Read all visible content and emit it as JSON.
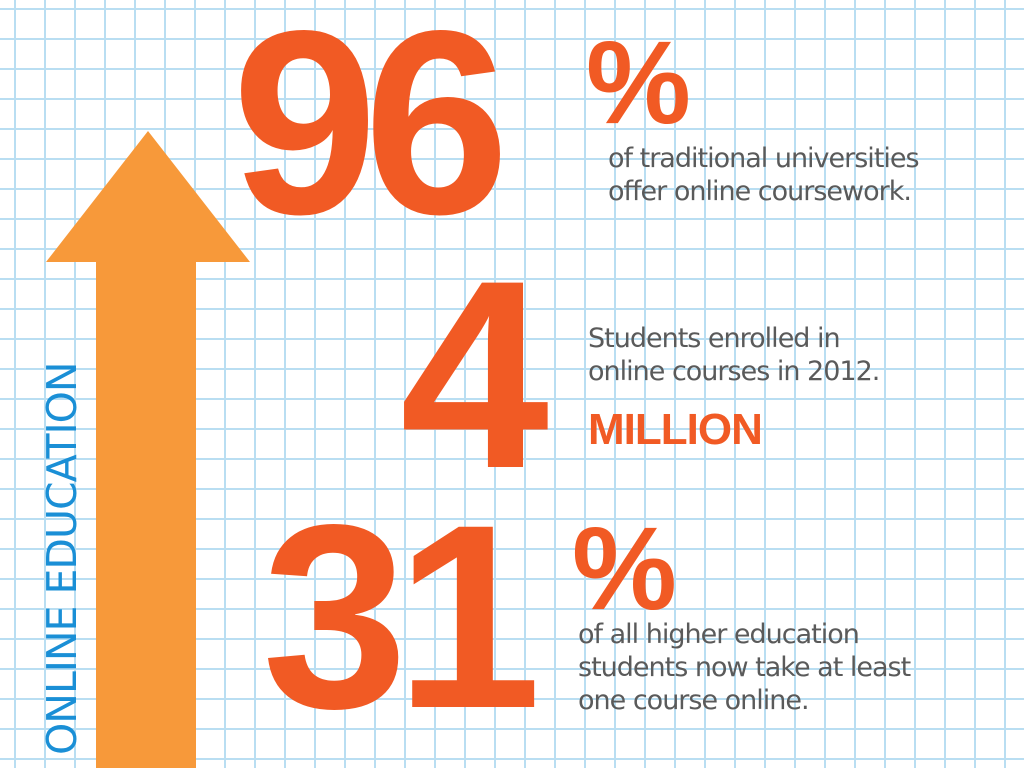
{
  "infographic": {
    "side_label": "ONLINE EDUCATION",
    "colors": {
      "accent_orange": "#f15a24",
      "arrow_orange": "#f7993a",
      "label_blue": "#1a8fd6",
      "text_gray": "#5a5a5a",
      "grid_blue": "#b9def2"
    },
    "stats": [
      {
        "number": "96",
        "unit": "%",
        "description": "of traditional universities\noffer online coursework."
      },
      {
        "number": "4",
        "unit": "MILLION",
        "description": "Students enrolled in\nonline courses in 2012."
      },
      {
        "number": "31",
        "unit": "%",
        "description": "of all higher education\nstudents now take at least\none course online."
      }
    ]
  }
}
